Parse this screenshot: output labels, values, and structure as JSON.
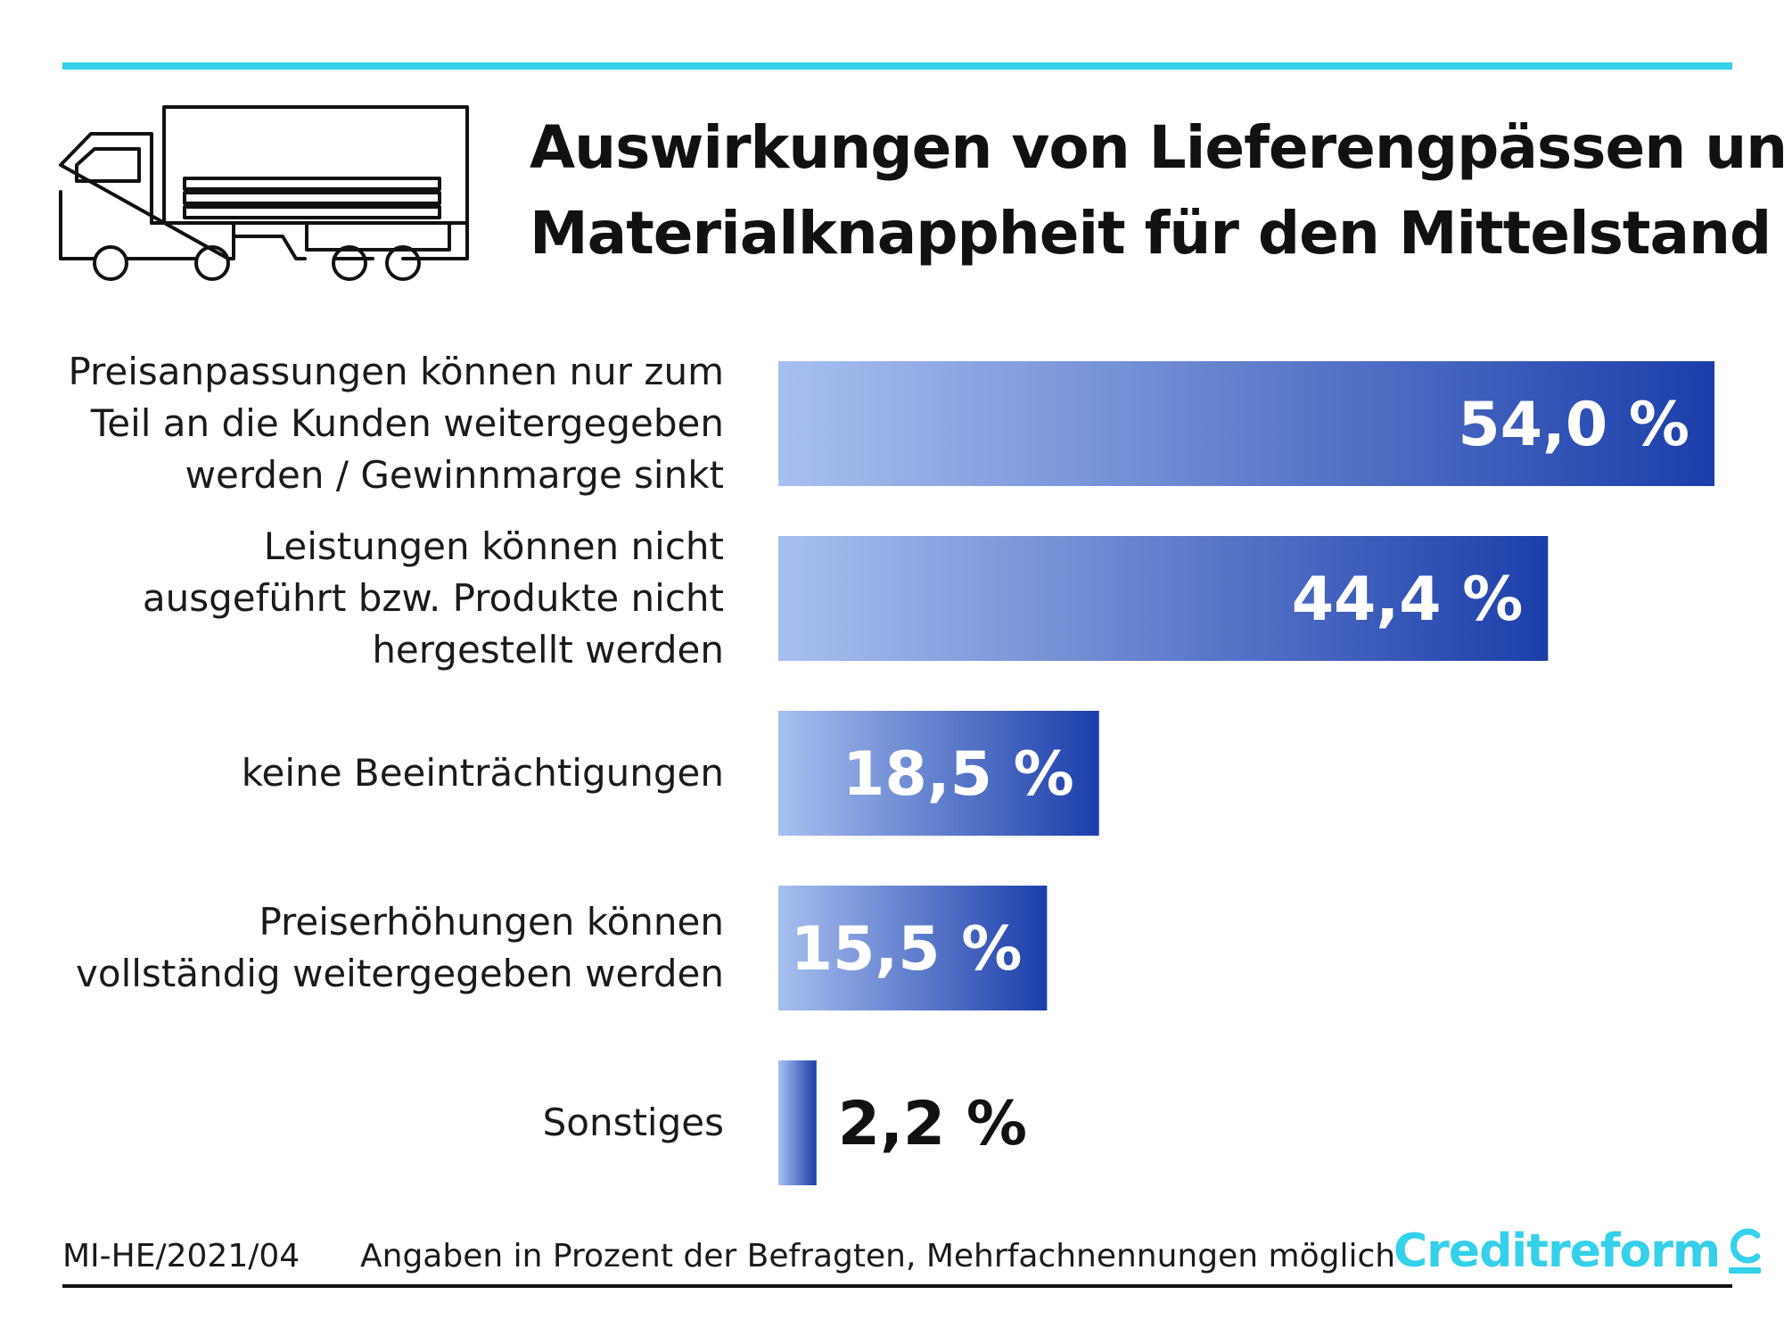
{
  "colors": {
    "accent": "#35d0ea",
    "bar_light": "#a8c0f0",
    "bar_dark": "#1b3eaa",
    "value_on_bar": "#ffffff",
    "value_outside": "#111111"
  },
  "header": {
    "title_line1": "Auswirkungen von Lieferengpässen und",
    "title_line2": "Materialknappheit für den Mittelstand",
    "icon": "truck-icon"
  },
  "chart_data": {
    "type": "bar",
    "orientation": "horizontal",
    "categories": [
      [
        "Preisanpassungen können nur zum",
        "Teil an die Kunden weitergegeben",
        "werden / Gewinnmarge sinkt"
      ],
      [
        "Leistungen können nicht",
        "ausgeführt bzw. Produkte nicht",
        "hergestellt werden"
      ],
      [
        "keine Beeinträchtigungen"
      ],
      [
        "Preiserhöhungen können",
        "vollständig weitergegeben werden"
      ],
      [
        "Sonstiges"
      ]
    ],
    "values": [
      54.0,
      44.4,
      18.5,
      15.5,
      2.2
    ],
    "value_labels": [
      "54,0 %",
      "44,4 %",
      "18,5 %",
      "15,5 %",
      "2,2 %"
    ],
    "unit": "%"
  },
  "footer": {
    "id": "MI-HE/2021/04",
    "note": "Angaben in Prozent der Befragten, Mehrfachnennungen möglich",
    "logo_text": "Creditreform"
  }
}
